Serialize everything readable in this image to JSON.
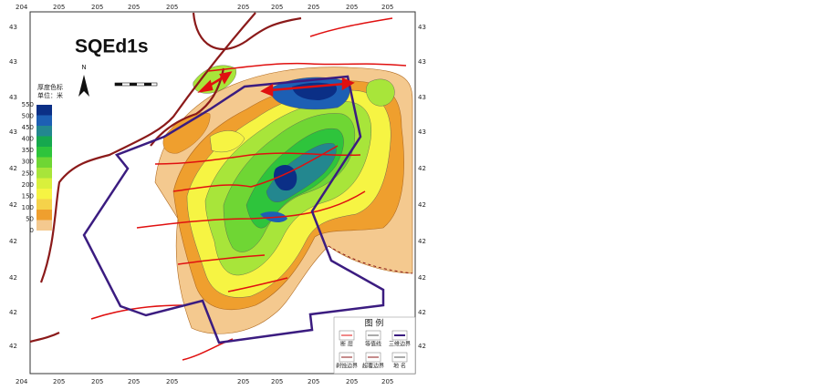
{
  "title": "SQEd1s",
  "north": "N",
  "color_scale": {
    "title": "厚度色标",
    "unit": "单位：米",
    "labels": [
      "550",
      "500",
      "450",
      "400",
      "350",
      "300",
      "250",
      "200",
      "150",
      "100",
      "50",
      "0"
    ],
    "colors": [
      "#0b2f86",
      "#1d5fb4",
      "#23878f",
      "#16a84e",
      "#2ec43c",
      "#6fd634",
      "#a8e53a",
      "#d9f03c",
      "#f6f443",
      "#f5d24a",
      "#ef9f2e",
      "#f4c98f"
    ]
  },
  "top_labels": [
    "204",
    "205",
    "205",
    "205",
    "205",
    "205",
    "205",
    "205",
    "205",
    "205"
  ],
  "bottom_labels": [
    "204",
    "205",
    "205",
    "205",
    "205",
    "205",
    "205",
    "205",
    "205",
    "205"
  ],
  "left_labels": [
    "43",
    "43",
    "43",
    "43",
    "42",
    "42",
    "42",
    "42",
    "42",
    "42"
  ],
  "right_labels": [
    "43",
    "43",
    "43",
    "43",
    "42",
    "42",
    "42",
    "42",
    "42",
    "42"
  ],
  "legend": {
    "title": "图 例",
    "items": [
      "断 层",
      "等值线",
      "三维边界",
      "剥蚀边界",
      "超覆边界",
      "地 名"
    ]
  }
}
